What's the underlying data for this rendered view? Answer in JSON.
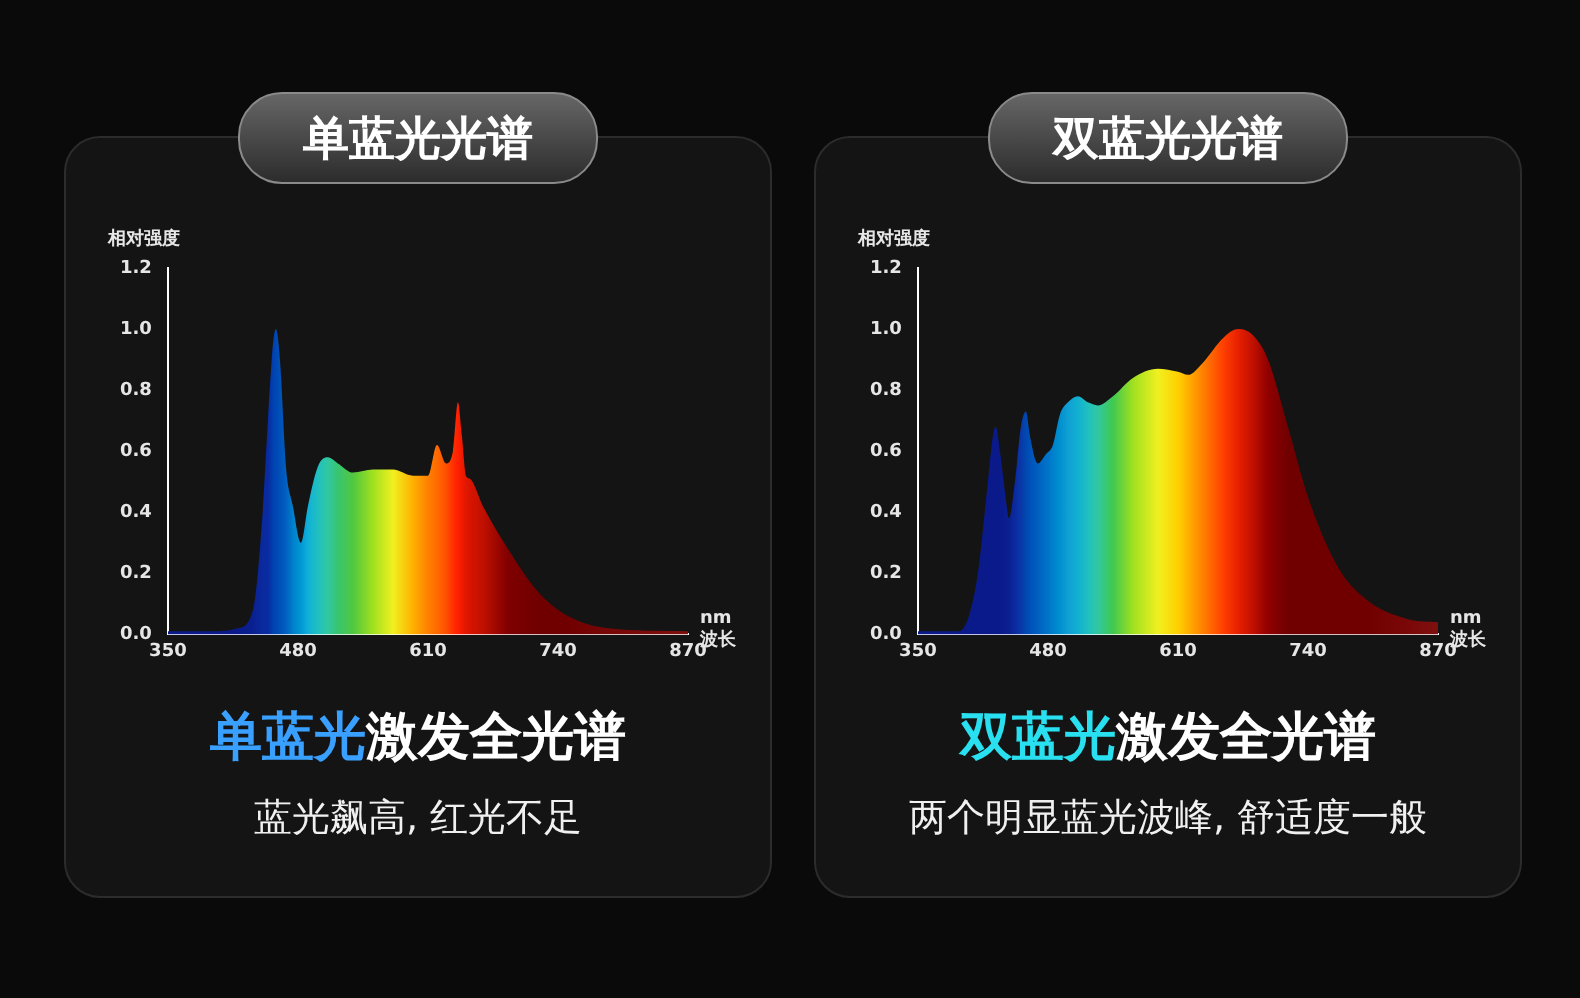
{
  "chart_data": [
    {
      "type": "area",
      "title": "单蓝光光谱",
      "subtitle": "单蓝光激发全光谱",
      "annotations": [
        "蓝光飙高, 红光不足"
      ],
      "ylabel": "相对强度",
      "xlabel": "nm 波长",
      "xlim": [
        350,
        870
      ],
      "xticks": [
        350,
        480,
        610,
        740,
        870
      ],
      "ylim": [
        0,
        1.2
      ],
      "yticks": [
        {
          "value": 0,
          "label": "0.0"
        },
        {
          "value": 0.2,
          "label": "0.2"
        },
        {
          "value": 0.4,
          "label": "0.4"
        },
        {
          "value": 0.6,
          "label": "0.6"
        },
        {
          "value": 0.8,
          "label": "0.8"
        },
        {
          "value": 1,
          "label": "1.0"
        },
        {
          "value": 1.2,
          "label": "1.2"
        }
      ],
      "grid": false,
      "legend": false,
      "marker": "none",
      "series": [
        {
          "x": [
            350,
            400,
            420,
            435,
            445,
            450,
            455,
            458,
            462,
            468,
            475,
            483,
            490,
            500,
            510,
            520,
            535,
            555,
            575,
            595,
            610,
            619,
            628,
            635,
            640,
            644,
            648,
            652,
            665,
            690,
            720,
            750,
            790,
            870
          ],
          "values": [
            0.01,
            0.01,
            0.02,
            0.08,
            0.41,
            0.7,
            0.95,
            1.0,
            0.9,
            0.55,
            0.42,
            0.3,
            0.42,
            0.55,
            0.58,
            0.56,
            0.53,
            0.54,
            0.54,
            0.52,
            0.52,
            0.62,
            0.56,
            0.6,
            0.76,
            0.65,
            0.52,
            0.51,
            0.42,
            0.28,
            0.14,
            0.06,
            0.02,
            0.01
          ],
          "colors": [
            "#0a1a8a",
            "#0a1a8a",
            "#0a1a8a",
            "#0a2090",
            "#0a2aa0",
            "#0a2aa0",
            "#0040b0",
            "#0048b4",
            "#0050b8",
            "#0060c0",
            "#0080cc",
            "#0098d4",
            "#10b0d8",
            "#20c0c0",
            "#30c8a0",
            "#38c470",
            "#50c840",
            "#a0e020",
            "#f0f020",
            "#ffb000",
            "#ff8000",
            "#ff6a00",
            "#ff5000",
            "#ff3000",
            "#ff2000",
            "#f01a00",
            "#e01800",
            "#d81400",
            "#c01000",
            "#800000",
            "#700000",
            "#700000",
            "#780808",
            "#801010"
          ]
        }
      ]
    },
    {
      "type": "area",
      "title": "双蓝光光谱",
      "subtitle": "双蓝光激发全光谱",
      "annotations": [
        "两个明显蓝光波峰, 舒适度一般"
      ],
      "ylabel": "相对强度",
      "xlabel": "nm 波长",
      "xlim": [
        350,
        870
      ],
      "xticks": [
        350,
        480,
        610,
        740,
        870
      ],
      "ylim": [
        0,
        1.2
      ],
      "yticks": [
        {
          "value": 0,
          "label": "0.0"
        },
        {
          "value": 0.2,
          "label": "0.2"
        },
        {
          "value": 0.4,
          "label": "0.4"
        },
        {
          "value": 0.6,
          "label": "0.6"
        },
        {
          "value": 0.8,
          "label": "0.8"
        },
        {
          "value": 1,
          "label": "1.0"
        },
        {
          "value": 1.2,
          "label": "1.2"
        }
      ],
      "grid": false,
      "legend": false,
      "marker": "none",
      "series": [
        {
          "x": [
            350,
            390,
            400,
            410,
            420,
            425,
            428,
            432,
            438,
            441,
            447,
            453,
            458,
            462,
            470,
            478,
            485,
            492,
            500,
            510,
            520,
            530,
            545,
            565,
            590,
            610,
            620,
            635,
            655,
            670,
            685,
            700,
            720,
            740,
            770,
            800,
            840,
            870
          ],
          "values": [
            0.01,
            0.01,
            0.05,
            0.2,
            0.5,
            0.65,
            0.68,
            0.6,
            0.44,
            0.38,
            0.5,
            0.68,
            0.73,
            0.65,
            0.56,
            0.59,
            0.62,
            0.72,
            0.76,
            0.78,
            0.76,
            0.75,
            0.78,
            0.84,
            0.87,
            0.86,
            0.85,
            0.89,
            0.97,
            1.0,
            0.98,
            0.9,
            0.68,
            0.45,
            0.22,
            0.11,
            0.05,
            0.04
          ],
          "colors": [
            "#0a1a8a",
            "#0a1a8a",
            "#0a1a8a",
            "#0a1a8a",
            "#0a1a8a",
            "#0a1a8a",
            "#0a1a8a",
            "#0a1a8a",
            "#0a1e90",
            "#0a2090",
            "#0a2aa0",
            "#0a38a8",
            "#0048b0",
            "#0050b8",
            "#0060c0",
            "#0070c8",
            "#0080cc",
            "#0090d0",
            "#10a0d4",
            "#10b0d0",
            "#20c0c0",
            "#30c8a0",
            "#40c850",
            "#a0e020",
            "#f0f020",
            "#ffd000",
            "#ffb000",
            "#ff8000",
            "#ff4000",
            "#e82000",
            "#c01000",
            "#900000",
            "#700000",
            "#700000",
            "#700000",
            "#700000",
            "#7a0808",
            "#801010"
          ]
        }
      ]
    }
  ]
}
